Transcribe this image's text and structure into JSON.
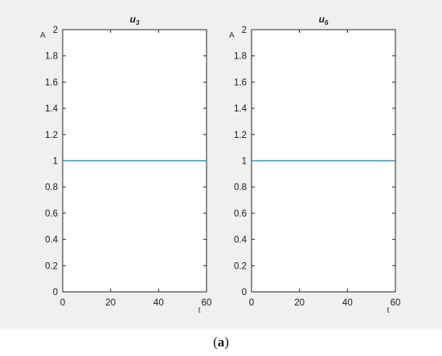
{
  "caption": {
    "open": "(",
    "label": "a",
    "close": ")"
  },
  "colors": {
    "figure_background": "#f0f0f0",
    "axes_background": "#ffffff",
    "series_line": "#3a8fb5",
    "axis": "#262626"
  },
  "chart_data": [
    {
      "type": "line",
      "title": "u3",
      "title_main": "u",
      "title_sub": "3",
      "xlabel": "t",
      "ylabel": "A",
      "xlim": [
        0,
        60
      ],
      "ylim": [
        0,
        2
      ],
      "xticks": [
        0,
        20,
        40,
        60
      ],
      "yticks": [
        0,
        0.2,
        0.4,
        0.6,
        0.8,
        1,
        1.2,
        1.4,
        1.6,
        1.8,
        2
      ],
      "grid": false,
      "series": [
        {
          "x": [
            0,
            60
          ],
          "y": [
            1,
            1
          ]
        }
      ]
    },
    {
      "type": "line",
      "title": "u6",
      "title_main": "u",
      "title_sub": "6",
      "xlabel": "t",
      "ylabel": "A",
      "xlim": [
        0,
        60
      ],
      "ylim": [
        0,
        2
      ],
      "xticks": [
        0,
        20,
        40,
        60
      ],
      "yticks": [
        0,
        0.2,
        0.4,
        0.6,
        0.8,
        1,
        1.2,
        1.4,
        1.6,
        1.8,
        2
      ],
      "grid": false,
      "series": [
        {
          "x": [
            0,
            60
          ],
          "y": [
            1,
            1
          ]
        }
      ]
    }
  ]
}
